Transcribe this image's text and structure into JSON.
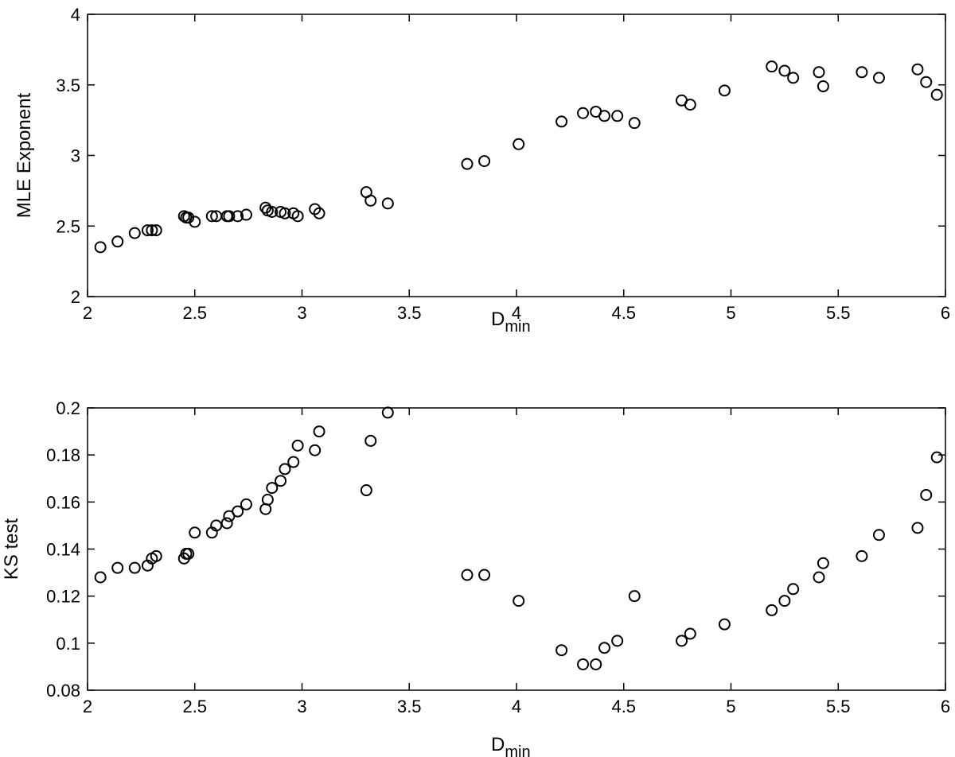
{
  "chart_data": [
    {
      "type": "scatter",
      "ylabel": "MLE Exponent",
      "xlabel": {
        "base": "D",
        "subscript": "min"
      },
      "x": [
        2.06,
        2.14,
        2.22,
        2.28,
        2.3,
        2.32,
        2.45,
        2.46,
        2.47,
        2.5,
        2.58,
        2.6,
        2.65,
        2.66,
        2.7,
        2.74,
        2.83,
        2.84,
        2.86,
        2.9,
        2.92,
        2.96,
        2.98,
        3.06,
        3.08,
        3.3,
        3.32,
        3.4,
        3.77,
        3.85,
        4.01,
        4.21,
        4.31,
        4.37,
        4.41,
        4.47,
        4.55,
        4.77,
        4.81,
        4.97,
        5.19,
        5.25,
        5.29,
        5.41,
        5.43,
        5.61,
        5.69,
        5.87,
        5.91,
        5.96
      ],
      "values": [
        2.35,
        2.39,
        2.45,
        2.47,
        2.47,
        2.47,
        2.57,
        2.56,
        2.56,
        2.53,
        2.57,
        2.57,
        2.57,
        2.57,
        2.57,
        2.58,
        2.63,
        2.61,
        2.6,
        2.6,
        2.59,
        2.59,
        2.57,
        2.62,
        2.59,
        2.74,
        2.68,
        2.66,
        2.94,
        2.96,
        3.08,
        3.24,
        3.3,
        3.31,
        3.28,
        3.28,
        3.23,
        3.39,
        3.36,
        3.46,
        3.63,
        3.6,
        3.55,
        3.59,
        3.49,
        3.59,
        3.55,
        3.61,
        3.52,
        3.43
      ],
      "color": "#000000",
      "marker": "open-circle",
      "xlim": [
        2,
        6
      ],
      "xticks": [
        2,
        2.5,
        3,
        3.5,
        4,
        4.5,
        5,
        5.5,
        6
      ],
      "ylim": [
        2,
        4
      ],
      "yticks": [
        2,
        2.5,
        3,
        3.5,
        4
      ],
      "grid": false
    },
    {
      "type": "scatter",
      "ylabel": "KS test",
      "xlabel": {
        "base": "D",
        "subscript": "min"
      },
      "x": [
        2.06,
        2.14,
        2.22,
        2.28,
        2.3,
        2.32,
        2.45,
        2.46,
        2.47,
        2.5,
        2.58,
        2.6,
        2.65,
        2.66,
        2.7,
        2.74,
        2.83,
        2.84,
        2.86,
        2.9,
        2.92,
        2.96,
        2.98,
        3.06,
        3.08,
        3.3,
        3.32,
        3.4,
        3.77,
        3.85,
        4.01,
        4.21,
        4.31,
        4.37,
        4.41,
        4.47,
        4.55,
        4.77,
        4.81,
        4.97,
        5.19,
        5.25,
        5.29,
        5.41,
        5.43,
        5.61,
        5.69,
        5.87,
        5.91,
        5.96
      ],
      "values": [
        0.128,
        0.132,
        0.132,
        0.133,
        0.136,
        0.137,
        0.136,
        0.138,
        0.138,
        0.147,
        0.147,
        0.15,
        0.151,
        0.154,
        0.156,
        0.159,
        0.157,
        0.161,
        0.166,
        0.169,
        0.174,
        0.177,
        0.184,
        0.182,
        0.19,
        0.165,
        0.186,
        0.198,
        0.129,
        0.129,
        0.118,
        0.097,
        0.091,
        0.091,
        0.098,
        0.101,
        0.12,
        0.101,
        0.104,
        0.108,
        0.114,
        0.118,
        0.123,
        0.128,
        0.134,
        0.137,
        0.146,
        0.149,
        0.163,
        0.179
      ],
      "color": "#000000",
      "marker": "open-circle",
      "xlim": [
        2,
        6
      ],
      "xticks": [
        2,
        2.5,
        3,
        3.5,
        4,
        4.5,
        5,
        5.5,
        6
      ],
      "ylim": [
        0.08,
        0.2
      ],
      "yticks": [
        0.08,
        0.1,
        0.12,
        0.14,
        0.16,
        0.18,
        0.2
      ],
      "grid": false
    }
  ]
}
